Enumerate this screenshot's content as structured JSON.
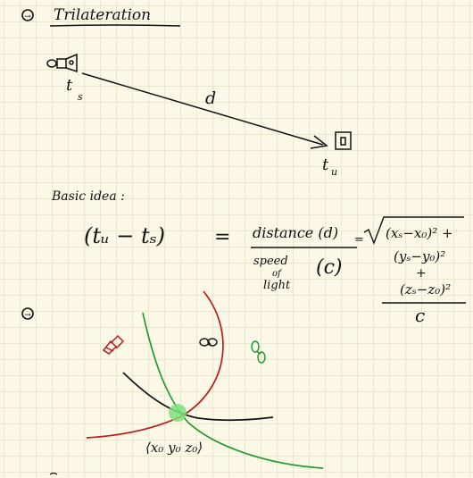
{
  "page": {
    "title": "Trilateration",
    "section_markers": [
      "→",
      "→"
    ]
  },
  "diagram": {
    "sender_label": "t",
    "sender_subscript": "s",
    "receiver_label": "t",
    "receiver_subscript": "u",
    "distance_label": "d"
  },
  "basic_idea": {
    "heading": "Basic idea :",
    "lhs": "(tᵤ − tₛ)",
    "equals": "=",
    "numerator": "distance (d)",
    "denominator_words": [
      "speed",
      "of",
      "light"
    ],
    "denominator_symbol": "(c)",
    "equals_small": "=",
    "sqrt_line1": "(xₛ−x₀)² +",
    "sqrt_line2": "(yₛ−y₀)²",
    "sqrt_plus": "+",
    "sqrt_line3": "(zₛ−z₀)²",
    "final_denominator": "c"
  },
  "trilateration_figure": {
    "intersection_label": "⟨x₀ y₀ z₀⟩",
    "colors": {
      "red": "#c0161c",
      "green": "#1e9b2f",
      "black": "#141414",
      "highlight": "#7ee07a"
    }
  }
}
